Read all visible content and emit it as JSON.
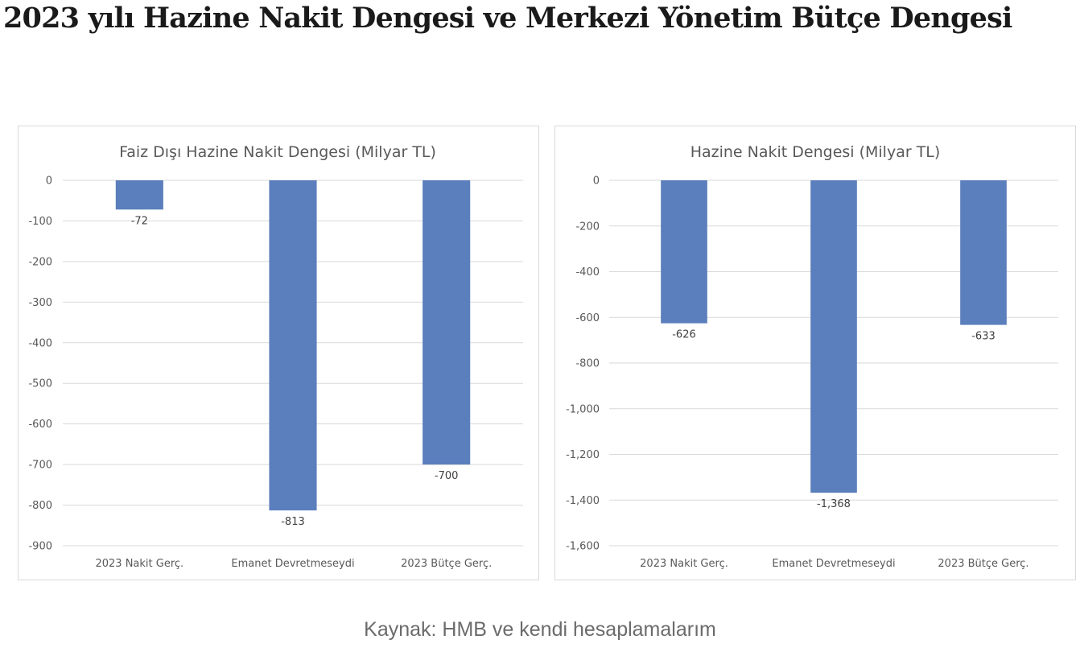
{
  "page": {
    "title": "2023 yılı Hazine Nakit Dengesi ve Merkezi Yönetim Bütçe Dengesi",
    "caption": "Kaynak: HMB ve kendi hesaplamalarım"
  },
  "colors": {
    "bar": "#5b7fbc",
    "grid": "#d9d9d9",
    "text": "#595959"
  },
  "chart_data": [
    {
      "type": "bar",
      "title": "Faiz Dışı Hazine Nakit Dengesi (Milyar TL)",
      "xlabel": "",
      "ylabel": "",
      "categories": [
        "2023 Nakit Gerç.",
        "Emanet Devretmeseydi",
        "2023 Bütçe Gerç."
      ],
      "values": [
        -72,
        -813,
        -700
      ],
      "data_labels": [
        "-72",
        "-813",
        "-700"
      ],
      "ylim": [
        -900,
        0
      ],
      "yticks": [
        0,
        -100,
        -200,
        -300,
        -400,
        -500,
        -600,
        -700,
        -800,
        -900
      ],
      "ytick_labels": [
        "0",
        "-100",
        "-200",
        "-300",
        "-400",
        "-500",
        "-600",
        "-700",
        "-800",
        "-900"
      ],
      "grid": true,
      "legend": "none"
    },
    {
      "type": "bar",
      "title": "Hazine Nakit Dengesi (Milyar TL)",
      "xlabel": "",
      "ylabel": "",
      "categories": [
        "2023 Nakit Gerç.",
        "Emanet Devretmeseydi",
        "2023 Bütçe Gerç."
      ],
      "values": [
        -626,
        -1368,
        -633
      ],
      "data_labels": [
        "-626",
        "-1,368",
        "-633"
      ],
      "ylim": [
        -1600,
        0
      ],
      "yticks": [
        0,
        -200,
        -400,
        -600,
        -800,
        -1000,
        -1200,
        -1400,
        -1600
      ],
      "ytick_labels": [
        "0",
        "-200",
        "-400",
        "-600",
        "-800",
        "-1,000",
        "-1,200",
        "-1,400",
        "-1,600"
      ],
      "grid": true,
      "legend": "none"
    }
  ]
}
